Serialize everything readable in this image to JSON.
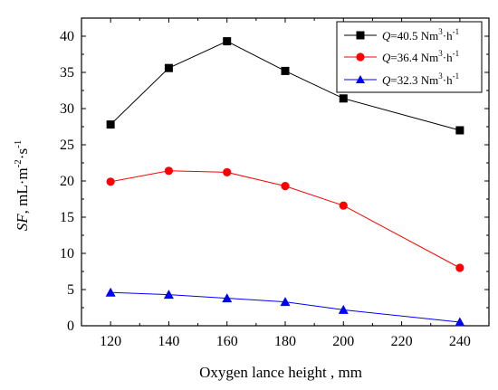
{
  "chart_data": {
    "type": "line",
    "x": [
      120,
      140,
      160,
      180,
      200,
      240
    ],
    "xlim": [
      110,
      250
    ],
    "ylim": [
      0,
      42.5
    ],
    "xticks": [
      "120",
      "140",
      "160",
      "180",
      "200",
      "220",
      "240"
    ],
    "yticks": [
      "0",
      "5",
      "10",
      "15",
      "20",
      "25",
      "30",
      "35",
      "40"
    ],
    "xlabel": "Oxygen lance height , mm",
    "ylabel_main": "SF",
    "ylabel_unit": ", mL·m",
    "ylabel_exp1": "-2",
    "ylabel_mid": "·s",
    "ylabel_exp2": "-1",
    "grid": false,
    "legend_position": "top-right",
    "series": [
      {
        "name_italic": "Q",
        "name_text": "=40.5 Nm",
        "name_sup1": "3",
        "name_mid": "·h",
        "name_sup2": "-1",
        "marker": "square",
        "color": "#000000",
        "values": [
          27.8,
          35.6,
          39.3,
          35.2,
          31.4,
          27.0
        ]
      },
      {
        "name_italic": "Q",
        "name_text": "=36.4 Nm",
        "name_sup1": "3",
        "name_mid": "·h",
        "name_sup2": "-1",
        "marker": "circle",
        "color": "#ff0000",
        "values": [
          19.9,
          21.4,
          21.2,
          19.3,
          16.6,
          8.0
        ]
      },
      {
        "name_italic": "Q",
        "name_text": "=32.3 Nm",
        "name_sup1": "3",
        "name_mid": "·h",
        "name_sup2": "-1",
        "marker": "triangle",
        "color": "#0000ff",
        "values": [
          4.6,
          4.3,
          3.8,
          3.3,
          2.2,
          0.5
        ]
      }
    ]
  }
}
